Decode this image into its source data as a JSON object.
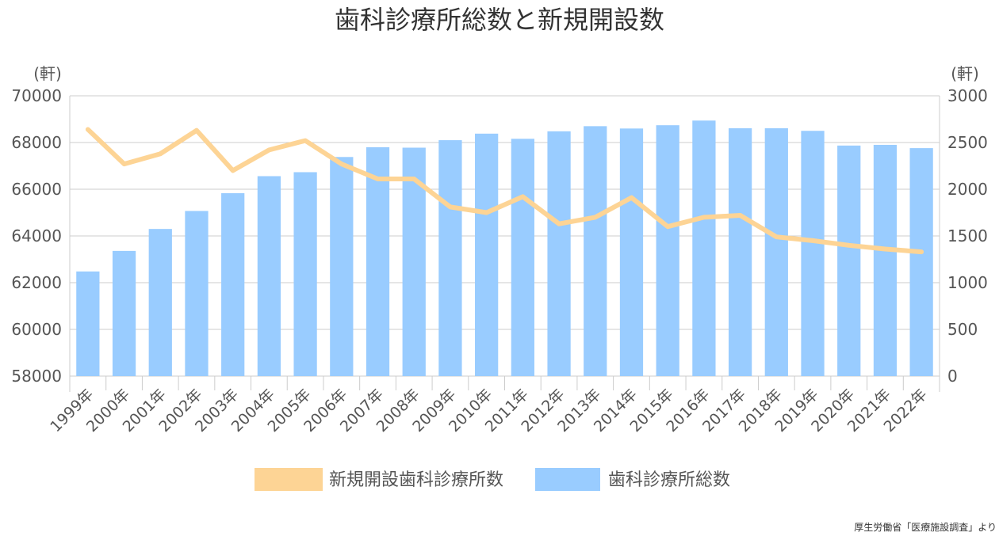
{
  "chart_data": {
    "type": "bar",
    "title": "歯科診療所総数と新規開設数",
    "source": "厚生労働省「医療施設調査」より",
    "left_unit": "(軒)",
    "right_unit": "(軒)",
    "categories": [
      "1999年",
      "2000年",
      "2001年",
      "2002年",
      "2003年",
      "2004年",
      "2005年",
      "2006年",
      "2007年",
      "2008年",
      "2009年",
      "2010年",
      "2011年",
      "2012年",
      "2013年",
      "2014年",
      "2015年",
      "2016年",
      "2017年",
      "2018年",
      "2019年",
      "2020年",
      "2021年",
      "2022年"
    ],
    "left_axis": {
      "min": 58000,
      "max": 70000,
      "ticks": [
        "58000",
        "60000",
        "62000",
        "64000",
        "66000",
        "68000",
        "70000"
      ]
    },
    "right_axis": {
      "min": 0,
      "max": 3000,
      "ticks": [
        "0",
        "500",
        "1000",
        "1500",
        "2000",
        "2500",
        "3000"
      ]
    },
    "grid": true,
    "legend_position": "bottom",
    "series": [
      {
        "name": "新規開設歯科診療所数",
        "type": "line",
        "axis": "right",
        "color": "#fdd495",
        "values": [
          2640,
          2270,
          2380,
          2630,
          2200,
          2420,
          2520,
          2270,
          2110,
          2110,
          1810,
          1750,
          1920,
          1630,
          1700,
          1910,
          1600,
          1700,
          1720,
          1490,
          1450,
          1400,
          1360,
          1330
        ]
      },
      {
        "name": "歯科診療所総数",
        "type": "bar",
        "axis": "left",
        "color": "#99ccff",
        "values": [
          62480,
          63360,
          64300,
          65070,
          65830,
          66560,
          66730,
          67380,
          67800,
          67780,
          68100,
          68380,
          68160,
          68480,
          68700,
          68600,
          68740,
          68940,
          68610,
          68610,
          68500,
          67870,
          67900,
          67760
        ]
      }
    ]
  }
}
